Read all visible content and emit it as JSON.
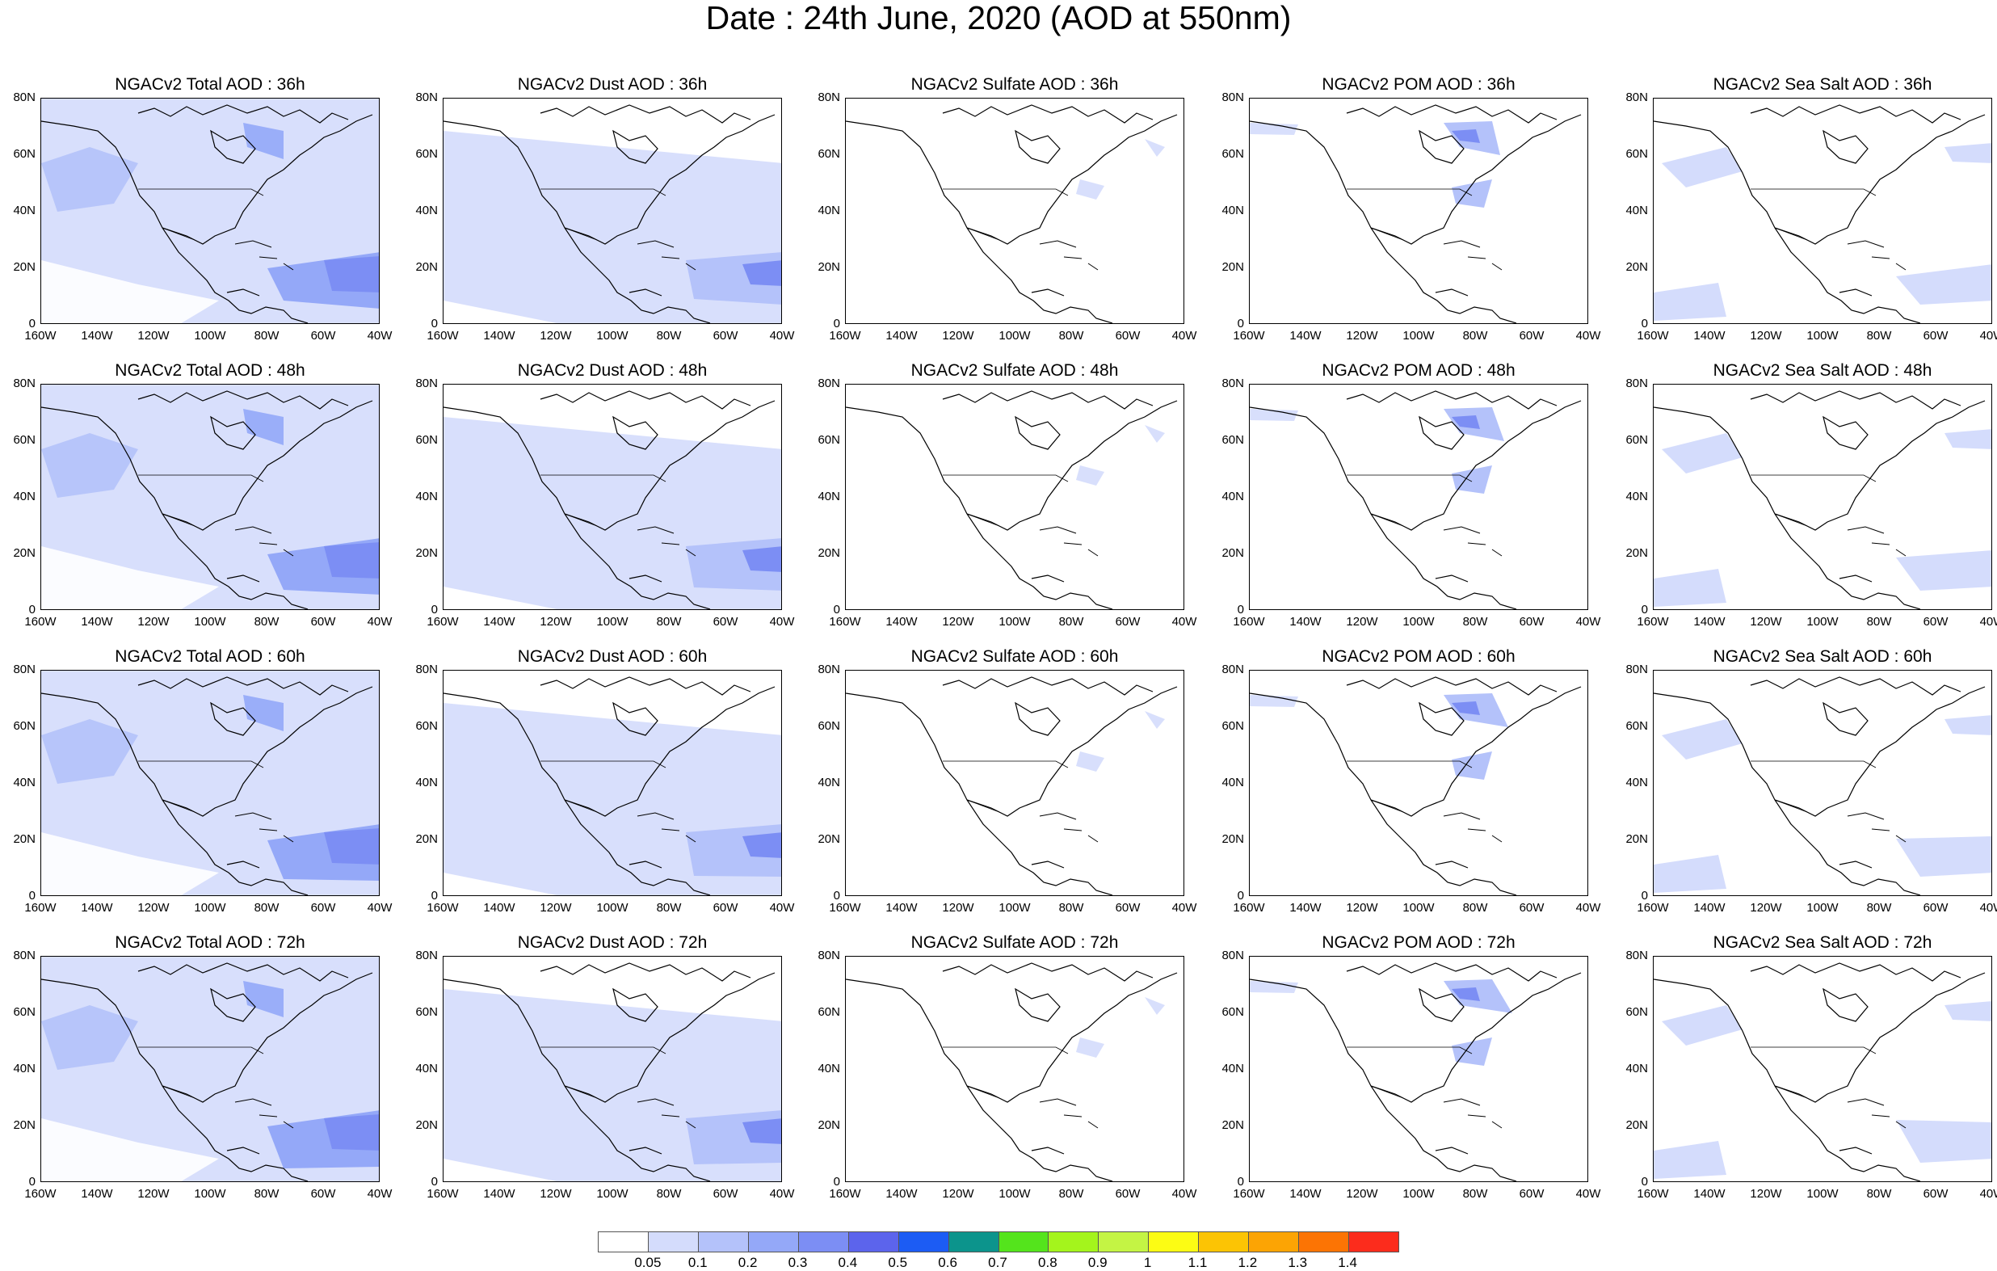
{
  "title": "Date : 24th June, 2020 (AOD at 550nm)",
  "y_ticks": [
    "80N",
    "60N",
    "40N",
    "20N",
    "0"
  ],
  "x_ticks": [
    "160W",
    "140W",
    "120W",
    "100W",
    "80W",
    "60W",
    "40W"
  ],
  "panels": [
    {
      "title": "NGACv2 Total AOD : 36h",
      "type": "total"
    },
    {
      "title": "NGACv2 Dust AOD : 36h",
      "type": "dust"
    },
    {
      "title": "NGACv2 Sulfate AOD : 36h",
      "type": "sulfate"
    },
    {
      "title": "NGACv2 POM AOD : 36h",
      "type": "pom"
    },
    {
      "title": "NGACv2 Sea Salt AOD : 36h",
      "type": "seasalt"
    },
    {
      "title": "NGACv2 Total AOD : 48h",
      "type": "total"
    },
    {
      "title": "NGACv2 Dust AOD : 48h",
      "type": "dust"
    },
    {
      "title": "NGACv2 Sulfate AOD : 48h",
      "type": "sulfate"
    },
    {
      "title": "NGACv2 POM AOD : 48h",
      "type": "pom"
    },
    {
      "title": "NGACv2 Sea Salt AOD : 48h",
      "type": "seasalt"
    },
    {
      "title": "NGACv2 Total AOD : 60h",
      "type": "total"
    },
    {
      "title": "NGACv2 Dust AOD : 60h",
      "type": "dust"
    },
    {
      "title": "NGACv2 Sulfate AOD : 60h",
      "type": "sulfate"
    },
    {
      "title": "NGACv2 POM AOD : 60h",
      "type": "pom"
    },
    {
      "title": "NGACv2 Sea Salt AOD : 60h",
      "type": "seasalt"
    },
    {
      "title": "NGACv2 Total AOD : 72h",
      "type": "total"
    },
    {
      "title": "NGACv2 Dust AOD : 72h",
      "type": "dust"
    },
    {
      "title": "NGACv2 Sulfate AOD : 72h",
      "type": "sulfate"
    },
    {
      "title": "NGACv2 POM AOD : 72h",
      "type": "pom"
    },
    {
      "title": "NGACv2 Sea Salt  AOD : 72h",
      "type": "seasalt"
    }
  ],
  "colorbar": {
    "labels": [
      "0.05",
      "0.1",
      "0.2",
      "0.3",
      "0.4",
      "0.5",
      "0.6",
      "0.7",
      "0.8",
      "0.9",
      "1",
      "1.1",
      "1.2",
      "1.3",
      "1.4"
    ],
    "colors": [
      "#ffffff",
      "#d4dcfc",
      "#b4c2fa",
      "#94a8f8",
      "#7c8ef4",
      "#5c64ec",
      "#1c5cf4",
      "#0c948c",
      "#54e41c",
      "#a4f41c",
      "#c4f444",
      "#fcfc14",
      "#fcc404",
      "#fca404",
      "#fc7404",
      "#fc2c1c"
    ]
  }
}
